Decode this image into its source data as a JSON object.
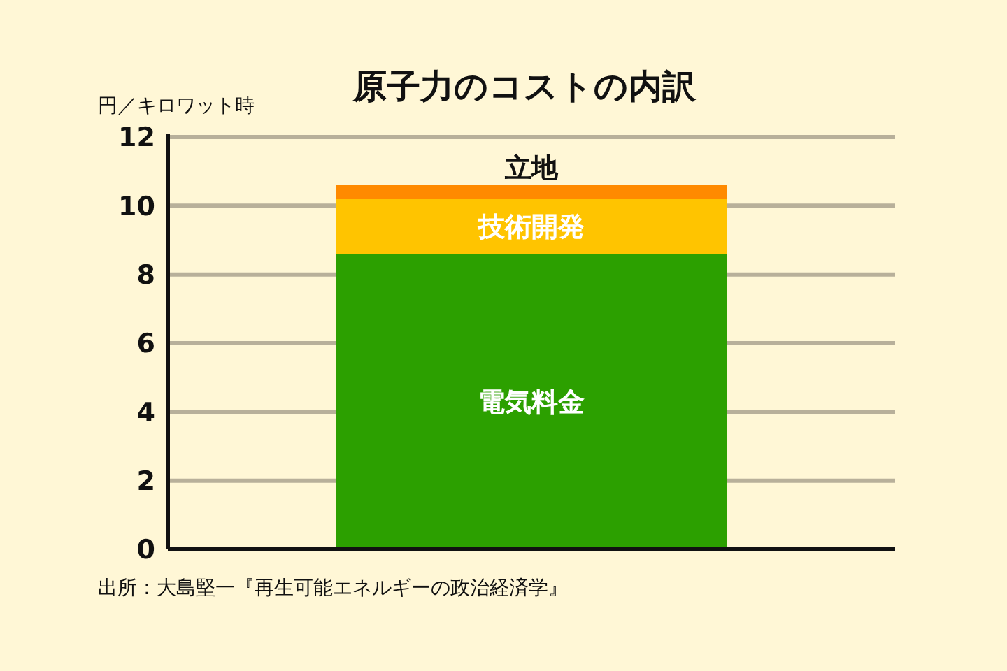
{
  "chart_data": {
    "type": "bar",
    "stacked": true,
    "title": "原子力のコストの内訳",
    "ylabel": "円／キロワット時",
    "categories": [
      null
    ],
    "series": [
      {
        "name": "電気料金",
        "color": "#2ca000",
        "values": [
          8.6
        ]
      },
      {
        "name": "技術開発",
        "color": "#ffc400",
        "values": [
          1.6
        ]
      },
      {
        "name": "立地",
        "color": "#ff8a00",
        "values": [
          0.4
        ]
      }
    ],
    "ylim": [
      0,
      12
    ],
    "yticks": [
      0,
      2,
      4,
      6,
      8,
      10,
      12
    ],
    "grid": "y",
    "annotations": [
      "出所：大島堅一『再生可能エネルギーの政治経済学』"
    ]
  }
}
